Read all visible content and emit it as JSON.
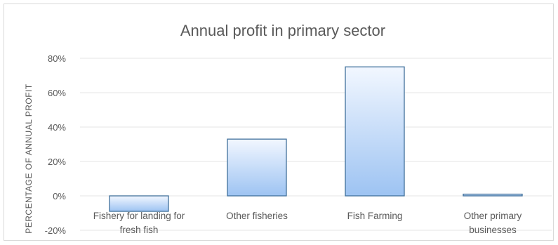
{
  "chart_data": {
    "type": "bar",
    "title": "Annual profit in primary sector",
    "ylabel": "PERCENTAGE OF ANNUAL PROFIT",
    "xlabel": "",
    "categories": [
      [
        "Fishery for landing for",
        "fresh fish"
      ],
      [
        "Other fisheries"
      ],
      [
        "Fish Farming"
      ],
      [
        "Other primary",
        "businesses"
      ]
    ],
    "values": [
      -9,
      33,
      75,
      1
    ],
    "ylim": [
      -20,
      80
    ],
    "yticks": [
      -20,
      0,
      20,
      40,
      60,
      80
    ],
    "ytick_labels": [
      "-20%",
      "0%",
      "20%",
      "40%",
      "60%",
      "80%"
    ],
    "grid": true,
    "legend": "none",
    "bar_fill_top": "#f2f7ff",
    "bar_fill_bottom": "#9dc3f2",
    "bar_stroke": "#41719c"
  }
}
